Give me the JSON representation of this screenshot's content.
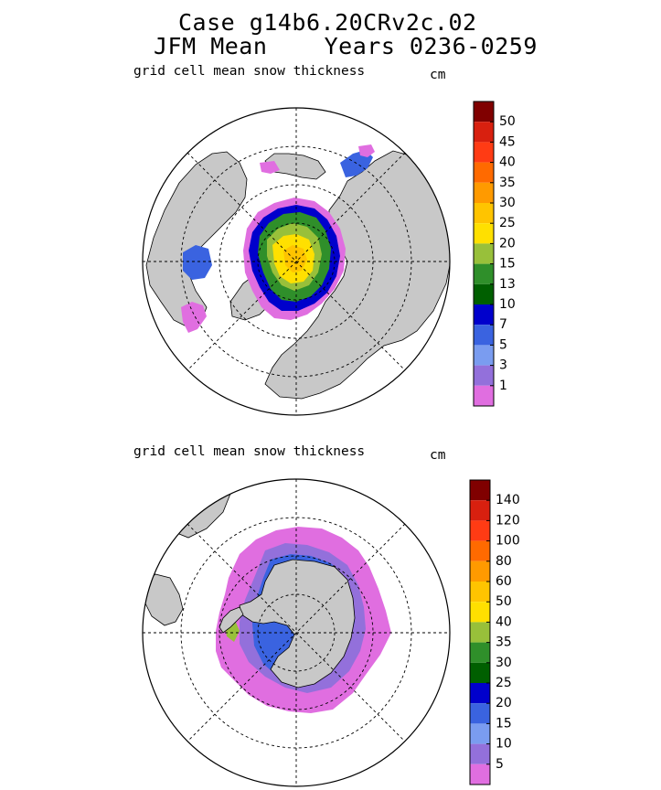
{
  "title": {
    "line1": "Case g14b6.20CRv2c.02",
    "line2": "JFM Mean    Years 0236-0259"
  },
  "chart_data": [
    {
      "type": "heatmap",
      "projection": "polar-stereographic-north",
      "title": "grid cell mean snow thickness",
      "units": "cm",
      "colorbar": {
        "labels": [
          "50",
          "45",
          "40",
          "35",
          "30",
          "25",
          "20",
          "15",
          "13",
          "10",
          "7",
          "5",
          "3",
          "1"
        ],
        "colors": [
          "#800000",
          "#d8200f",
          "#ff3b14",
          "#ff6a00",
          "#ff9a00",
          "#ffc400",
          "#ffe000",
          "#98c03a",
          "#2f8f2a",
          "#005f00",
          "#0000cc",
          "#3a63e0",
          "#7a9cf0",
          "#9370db",
          "#e06ee0"
        ]
      }
    },
    {
      "type": "heatmap",
      "projection": "polar-stereographic-south",
      "title": "grid cell mean snow thickness",
      "units": "cm",
      "colorbar": {
        "labels": [
          "140",
          "120",
          "100",
          "80",
          "60",
          "50",
          "40",
          "35",
          "30",
          "25",
          "20",
          "15",
          "10",
          "5"
        ],
        "colors": [
          "#800000",
          "#d8200f",
          "#ff3b14",
          "#ff6a00",
          "#ff9a00",
          "#ffc400",
          "#ffe000",
          "#98c03a",
          "#2f8f2a",
          "#005f00",
          "#0000cc",
          "#3a63e0",
          "#7a9cf0",
          "#9370db",
          "#e06ee0"
        ]
      }
    }
  ]
}
